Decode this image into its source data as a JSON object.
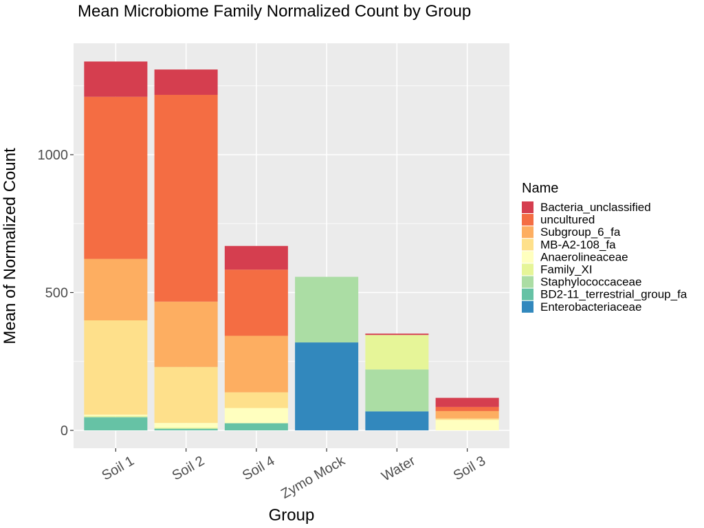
{
  "chart_data": {
    "type": "bar",
    "stacked": true,
    "title": "Mean Microbiome Family Normalized Count by Group",
    "xlabel": "Group",
    "ylabel": "Mean of Normalized Count",
    "ylim": [
      -60,
      1400
    ],
    "yticks": [
      0,
      500,
      1000
    ],
    "grid": true,
    "legend_position": "right",
    "legend_title": "Name",
    "categories": [
      "Soil 1",
      "Soil 2",
      "Soil 4",
      "Zymo Mock",
      "Water",
      "Soil 3"
    ],
    "series": [
      {
        "name": "Bacteria_unclassified",
        "color": "#D53E4F",
        "values": [
          128,
          92,
          86,
          0,
          5,
          33
        ]
      },
      {
        "name": "uncultured",
        "color": "#F46D43",
        "values": [
          588,
          750,
          240,
          0,
          0,
          15
        ]
      },
      {
        "name": "Subgroup_6_fa",
        "color": "#FDAE61",
        "values": [
          223,
          237,
          205,
          0,
          0,
          27
        ]
      },
      {
        "name": "MB-A2-108_fa",
        "color": "#FEE08B",
        "values": [
          342,
          203,
          57,
          0,
          0,
          5
        ]
      },
      {
        "name": "Anaerolineaceae",
        "color": "#FFFFBF",
        "values": [
          5,
          17,
          55,
          0,
          0,
          38
        ]
      },
      {
        "name": "Family_XI",
        "color": "#E6F598",
        "values": [
          3,
          3,
          0,
          0,
          125,
          0
        ]
      },
      {
        "name": "Staphylococcaceae",
        "color": "#ABDDA4",
        "values": [
          2,
          2,
          0,
          238,
          152,
          0
        ]
      },
      {
        "name": "BD2-11_terrestrial_group_fa",
        "color": "#66C2A5",
        "values": [
          47,
          5,
          26,
          0,
          0,
          0
        ]
      },
      {
        "name": "Enterobacteriaceae",
        "color": "#3288BD",
        "values": [
          0,
          0,
          0,
          319,
          69,
          0
        ]
      }
    ]
  }
}
